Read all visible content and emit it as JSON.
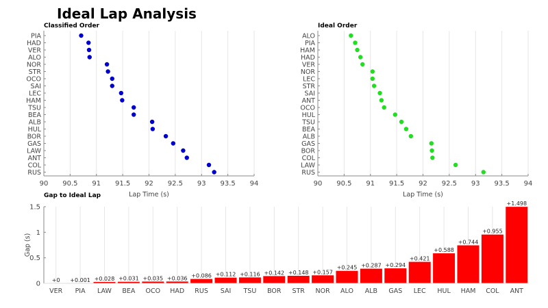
{
  "title": "Ideal Lap Analysis",
  "chart_data": [
    {
      "type": "scatter",
      "title": "Classified Order",
      "xlabel": "Lap Time (s)",
      "ylabel": "",
      "xlim": [
        90,
        94
      ],
      "xticks": [
        "90",
        "90.5",
        "91",
        "91.5",
        "92",
        "92.5",
        "93",
        "93.5",
        "94"
      ],
      "grid": "vertical",
      "color": "#0000cc",
      "categories": [
        "PIA",
        "HAD",
        "VER",
        "ALO",
        "NOR",
        "STR",
        "OCO",
        "SAI",
        "LEC",
        "HAM",
        "TSU",
        "BEA",
        "ALB",
        "HUL",
        "BOR",
        "GAS",
        "LAW",
        "ANT",
        "COL",
        "RUS"
      ],
      "values": [
        90.71,
        90.85,
        90.86,
        90.87,
        91.2,
        91.22,
        91.3,
        91.3,
        91.47,
        91.49,
        91.71,
        91.71,
        92.06,
        92.07,
        92.32,
        92.46,
        92.65,
        92.72,
        93.14,
        93.24
      ]
    },
    {
      "type": "scatter",
      "title": "Ideal Order",
      "xlabel": "Lap Time (s)",
      "ylabel": "",
      "xlim": [
        90,
        94
      ],
      "xticks": [
        "90",
        "90.5",
        "91",
        "91.5",
        "92",
        "92.5",
        "93",
        "93.5",
        "94"
      ],
      "grid": "vertical",
      "color": "#22dd22",
      "categories": [
        "ALO",
        "PIA",
        "HAM",
        "HAD",
        "VER",
        "NOR",
        "LEC",
        "STR",
        "SAI",
        "ANT",
        "OCO",
        "HUL",
        "TSU",
        "BEA",
        "ALB",
        "GAS",
        "BOR",
        "COL",
        "LAW",
        "RUS"
      ],
      "values": [
        90.63,
        90.71,
        90.75,
        90.81,
        90.85,
        91.04,
        91.04,
        91.07,
        91.18,
        91.21,
        91.26,
        91.47,
        91.59,
        91.68,
        91.77,
        92.16,
        92.17,
        92.18,
        92.62,
        93.15
      ]
    },
    {
      "type": "bar",
      "title": "Gap to Ideal Lap",
      "xlabel": "",
      "ylabel": "Gap (s)",
      "ylim": [
        0,
        1.5
      ],
      "yticks": [
        "0",
        "0.5",
        "1",
        "1.5"
      ],
      "grid": "vertical",
      "color": "#ff0000",
      "categories": [
        "VER",
        "PIA",
        "LAW",
        "BEA",
        "OCO",
        "HAD",
        "RUS",
        "SAI",
        "TSU",
        "BOR",
        "STR",
        "NOR",
        "ALO",
        "ALB",
        "GAS",
        "LEC",
        "HUL",
        "HAM",
        "COL",
        "ANT"
      ],
      "values": [
        0,
        0.001,
        0.028,
        0.031,
        0.035,
        0.036,
        0.086,
        0.112,
        0.116,
        0.142,
        0.148,
        0.157,
        0.245,
        0.287,
        0.294,
        0.421,
        0.588,
        0.744,
        0.955,
        1.498
      ],
      "labels": [
        "+0",
        "+0.001",
        "+0.028",
        "+0.031",
        "+0.035",
        "+0.036",
        "+0.086",
        "+0.112",
        "+0.116",
        "+0.142",
        "+0.148",
        "+0.157",
        "+0.245",
        "+0.287",
        "+0.294",
        "+0.421",
        "+0.588",
        "+0.744",
        "+0.955",
        "+1.498"
      ]
    }
  ]
}
